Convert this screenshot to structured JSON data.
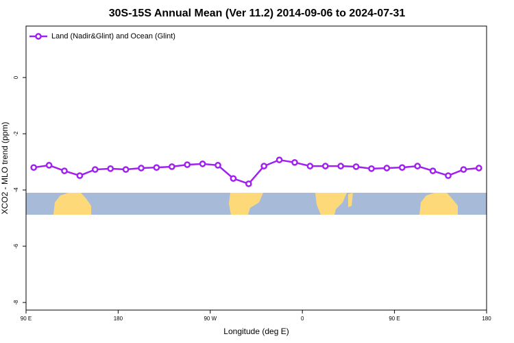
{
  "chart_data": {
    "type": "line",
    "title": "30S-15S Annual Mean (Ver 11.2)   2014-09-06 to 2024-07-31",
    "x_label": "Longitude (deg E)",
    "y_label": "XCO2 - MLO trend (ppm)",
    "x": [
      97.5,
      112.5,
      127.5,
      142.5,
      157.5,
      172.5,
      187.5,
      202.5,
      217.5,
      232.5,
      247.5,
      262.5,
      277.5,
      292.5,
      307.5,
      322.5,
      337.5,
      352.5,
      367.5,
      382.5,
      397.5,
      412.5,
      427.5,
      442.5,
      457.5,
      472.5,
      487.5,
      502.5,
      517.5,
      532.5
    ],
    "series": [
      {
        "name": "Land (Nadir&Glint) and Ocean (Glint)",
        "color": "#a020f0",
        "values": [
          -3.2,
          -3.12,
          -3.32,
          -3.49,
          -3.27,
          -3.24,
          -3.27,
          -3.22,
          -3.2,
          -3.17,
          -3.1,
          -3.07,
          -3.12,
          -3.59,
          -3.78,
          -3.15,
          -2.93,
          -3.02,
          -3.15,
          -3.15,
          -3.15,
          -3.17,
          -3.24,
          -3.22,
          -3.2,
          -3.15,
          -3.32,
          -3.49,
          -3.27,
          -3.22
        ]
      }
    ],
    "xlim": [
      90,
      540
    ],
    "xticks": [
      {
        "value": 90,
        "label": "90 E"
      },
      {
        "value": 180,
        "label": "180"
      },
      {
        "value": 270,
        "label": "90 W"
      },
      {
        "value": 360,
        "label": "0"
      },
      {
        "value": 450,
        "label": "90 E"
      },
      {
        "value": 540,
        "label": "180"
      }
    ],
    "ylim": [
      -8.27,
      1.83
    ],
    "yticks": [
      0,
      -2,
      -4,
      -6,
      -8
    ],
    "legend": "top-left"
  }
}
